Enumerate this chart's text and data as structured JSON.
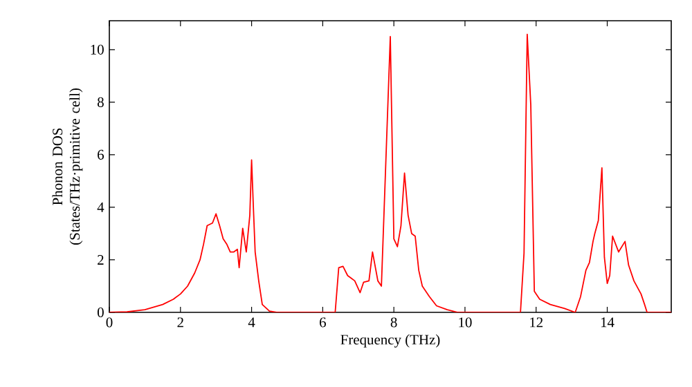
{
  "chart_data": {
    "type": "line",
    "xlabel": "Frequency (THz)",
    "ylabel": "Phonon DOS (States/THz·primitive cell)",
    "xlim": [
      0,
      15.8
    ],
    "ylim": [
      0,
      11.1
    ],
    "xticks": [
      0,
      2,
      4,
      6,
      8,
      10,
      12,
      14
    ],
    "yticks": [
      0,
      2,
      4,
      6,
      8,
      10
    ],
    "grid": false,
    "marker": "none",
    "line_style": "solid",
    "series": [
      {
        "color": "#ff0000",
        "x": [
          0,
          0.5,
          1,
          1.5,
          1.8,
          2,
          2.2,
          2.4,
          2.55,
          2.65,
          2.75,
          2.9,
          3.0,
          3.1,
          3.2,
          3.3,
          3.4,
          3.5,
          3.6,
          3.65,
          3.75,
          3.85,
          3.95,
          4.0,
          4.05,
          4.1,
          4.2,
          4.3,
          4.5,
          4.7,
          6.35,
          6.45,
          6.57,
          6.7,
          6.9,
          7.05,
          7.15,
          7.3,
          7.4,
          7.55,
          7.65,
          7.9,
          8.0,
          8.1,
          8.2,
          8.3,
          8.4,
          8.5,
          8.6,
          8.7,
          8.8,
          9.0,
          9.2,
          9.5,
          9.8,
          11.56,
          11.66,
          11.75,
          11.85,
          11.95,
          12.1,
          12.4,
          12.8,
          13.1,
          13.25,
          13.4,
          13.5,
          13.6,
          13.65,
          13.75,
          13.85,
          13.92,
          14.0,
          14.07,
          14.15,
          14.32,
          14.5,
          14.6,
          14.75,
          14.95,
          15.05,
          15.12,
          15.8
        ],
        "values": [
          0,
          0.02,
          0.1,
          0.3,
          0.5,
          0.7,
          1.0,
          1.5,
          2.0,
          2.6,
          3.3,
          3.4,
          3.75,
          3.3,
          2.8,
          2.6,
          2.3,
          2.3,
          2.4,
          1.7,
          3.2,
          2.3,
          3.7,
          5.8,
          4.0,
          2.3,
          1.2,
          0.3,
          0.05,
          0,
          0,
          1.7,
          1.75,
          1.4,
          1.2,
          0.75,
          1.15,
          1.2,
          2.3,
          1.2,
          1.0,
          10.5,
          2.8,
          2.5,
          3.3,
          5.3,
          3.7,
          3.0,
          2.9,
          1.6,
          1.0,
          0.6,
          0.25,
          0.1,
          0,
          0,
          2.25,
          10.58,
          7.9,
          0.8,
          0.5,
          0.3,
          0.15,
          0,
          0.6,
          1.6,
          1.9,
          2.7,
          3.0,
          3.5,
          5.5,
          2.1,
          1.1,
          1.4,
          2.9,
          2.3,
          2.7,
          1.8,
          1.2,
          0.7,
          0.3,
          0,
          0
        ]
      }
    ]
  }
}
